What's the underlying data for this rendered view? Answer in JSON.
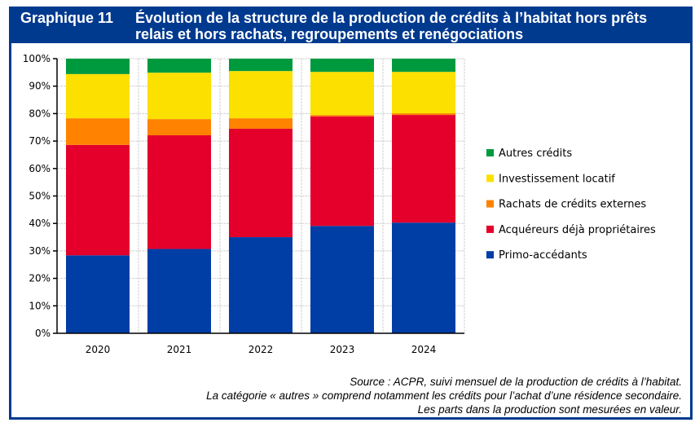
{
  "title": {
    "number": "Graphique 11",
    "text": "Évolution de la structure de la production de crédits à l’habitat hors prêts relais et hors rachats, regroupements et renégociations"
  },
  "chart_data": {
    "type": "bar",
    "stacked": true,
    "categories": [
      "2020",
      "2021",
      "2022",
      "2023",
      "2024"
    ],
    "series": [
      {
        "name": "Primo-accédants",
        "color": "#003da5",
        "values": [
          28.4,
          30.7,
          35.0,
          39.1,
          40.3
        ]
      },
      {
        "name": "Acquéreurs déjà propriétaires",
        "color": "#e4002b",
        "values": [
          40.2,
          41.4,
          39.5,
          39.9,
          39.2
        ]
      },
      {
        "name": "Rachats de crédits externes",
        "color": "#ff8200",
        "values": [
          9.7,
          5.9,
          3.8,
          0.5,
          0.6
        ]
      },
      {
        "name": "Investissement locatif",
        "color": "#fce000",
        "values": [
          16.1,
          16.9,
          17.2,
          15.7,
          15.1
        ]
      },
      {
        "name": "Autres crédits",
        "color": "#009a3e",
        "values": [
          5.6,
          5.1,
          4.5,
          4.8,
          4.8
        ]
      }
    ],
    "yticks": [
      "0%",
      "10%",
      "20%",
      "30%",
      "40%",
      "50%",
      "60%",
      "70%",
      "80%",
      "90%",
      "100%"
    ],
    "ylim": [
      0,
      100
    ],
    "grid": true,
    "legend_position": "right"
  },
  "footer": {
    "source": "Source : ACPR, suivi mensuel de la production de crédits à l’habitat.",
    "note1": "La catégorie « autres » comprend notamment les crédits pour l’achat d’une résidence secondaire.",
    "note2": "Les parts dans la production sont mesurées en valeur."
  }
}
